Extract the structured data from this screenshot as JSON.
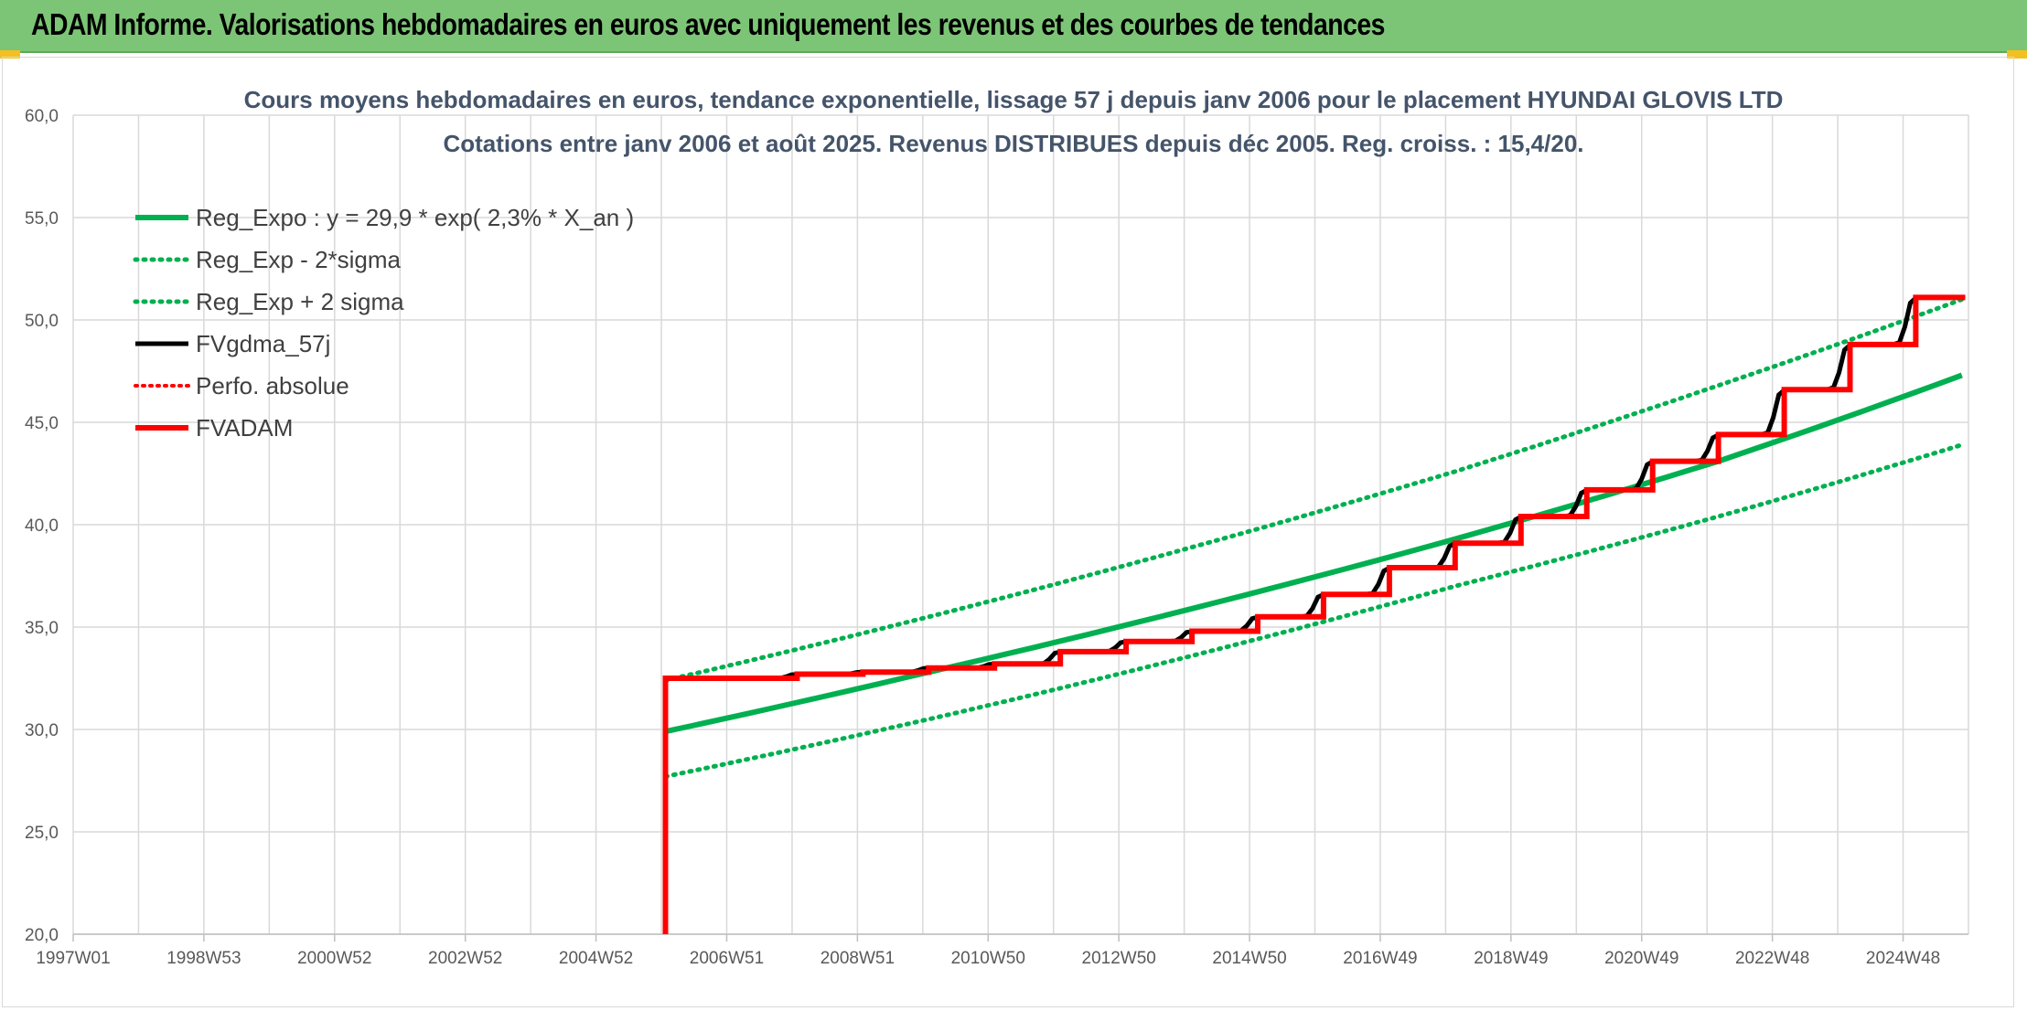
{
  "header": {
    "title": "ADAM Informe. Valorisations hebdomadaires en euros avec uniquement les revenus et des courbes de tendances"
  },
  "colors": {
    "header_bg": "#7cc576",
    "reg_expo": "#00b050",
    "fvgdma": "#000000",
    "fvadam": "#ff0000",
    "perfo": "#ff0000",
    "grid": "#d9d9d9"
  },
  "chart_data": {
    "type": "line",
    "title": "Cours moyens hebdomadaires en euros, tendance exponentielle, lissage 57 j depuis janv 2006 pour le placement HYUNDAI GLOVIS LTD",
    "subtitle": "Cotations entre janv 2006 et août 2025. Revenus DISTRIBUES depuis déc 2005. Reg. croiss. : 15,4/20.",
    "ylim": [
      20,
      60
    ],
    "xlim": [
      1997.0,
      2025.8
    ],
    "y_ticks": [
      "20,0",
      "25,0",
      "30,0",
      "35,0",
      "40,0",
      "45,0",
      "50,0",
      "55,0",
      "60,0"
    ],
    "x_ticks": [
      "1997W01",
      "1998W53",
      "2000W52",
      "2002W52",
      "2004W52",
      "2006W51",
      "2008W51",
      "2010W50",
      "2012W50",
      "2014W50",
      "2016W49",
      "2018W49",
      "2020W49",
      "2022W48",
      "2024W48"
    ],
    "grid": true,
    "legend_position": "top-left",
    "series": [
      {
        "name": "Reg_Expo : y = 29,9 * exp( 2,3% *  X_an )",
        "style": "solid",
        "x": [
          2006.0,
          2010.0,
          2014.0,
          2018.0,
          2022.0,
          2025.7
        ],
        "y": [
          29.9,
          32.8,
          35.9,
          39.3,
          43.1,
          47.3
        ]
      },
      {
        "name": "Reg_Exp - 2*sigma",
        "style": "dotted",
        "x": [
          2006.0,
          2010.0,
          2014.0,
          2018.0,
          2022.0,
          2025.7
        ],
        "y": [
          27.7,
          30.5,
          33.6,
          37.0,
          40.4,
          43.9
        ]
      },
      {
        "name": "Reg_Exp + 2 sigma",
        "style": "dotted",
        "x": [
          2006.0,
          2010.0,
          2014.0,
          2018.0,
          2022.0,
          2025.7
        ],
        "y": [
          32.4,
          35.5,
          38.9,
          42.6,
          46.8,
          51.0
        ]
      },
      {
        "name": "FVgdma_57j",
        "style": "solid",
        "x": [
          2006.0,
          2008.0,
          2010.0,
          2012.0,
          2014.0,
          2016.0,
          2018.0,
          2020.0,
          2022.0,
          2024.0,
          2025.7
        ],
        "y": [
          32.5,
          32.7,
          33.1,
          33.9,
          34.8,
          36.3,
          38.6,
          41.2,
          44.1,
          47.8,
          51.0
        ]
      },
      {
        "name": "Perfo. absolue",
        "style": "dotted",
        "x": [],
        "y": []
      },
      {
        "name": "FVADAM",
        "style": "step",
        "x": [
          2006.0,
          2006.0,
          2007.0,
          2008.0,
          2009.0,
          2010.0,
          2011.0,
          2012.0,
          2013.0,
          2014.0,
          2015.0,
          2016.0,
          2017.0,
          2018.0,
          2019.0,
          2020.0,
          2021.0,
          2022.0,
          2023.0,
          2024.0,
          2025.0,
          2025.75
        ],
        "y": [
          20.0,
          32.5,
          32.5,
          32.7,
          32.8,
          33.0,
          33.2,
          33.8,
          34.3,
          34.8,
          35.5,
          36.6,
          37.9,
          39.1,
          40.4,
          41.7,
          43.1,
          44.4,
          46.6,
          48.8,
          51.1,
          51.1
        ]
      }
    ]
  }
}
